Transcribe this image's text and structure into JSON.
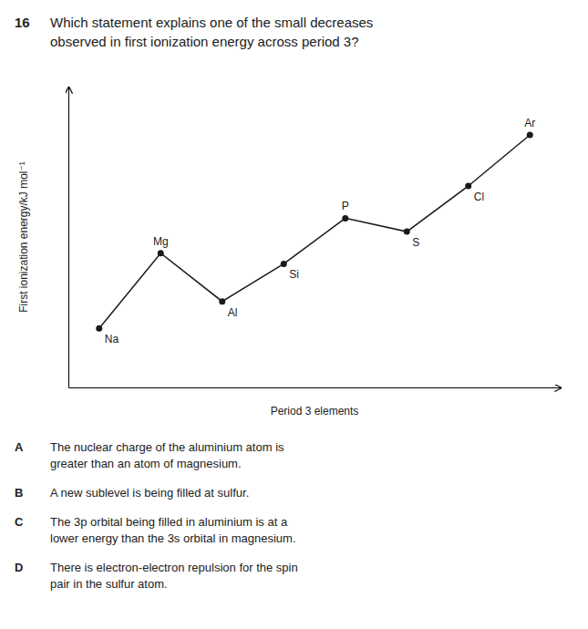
{
  "chart_data": {
    "type": "line",
    "title": "Which statement explains one of the small decreases\nobserved in first ionization energy across period 3?",
    "annotations": [
      "16",
      "A",
      "The nuclear charge of the aluminium atom is\ngreater than an atom of magnesium.",
      "B",
      "A new sublevel is being filled at sulfur.",
      "C",
      "The 3p orbital being filled in aluminium is at a\nlower energy than the 3s orbital in magnesium.",
      "D",
      "There is electron-electron repulsion for the spin\npair in the sulfur atom."
    ],
    "x_label": "Period 3 elements",
    "y_label": "First ionization energy/kJ mol⁻¹",
    "categories": [
      "Na",
      "Mg",
      "Al",
      "Si",
      "P",
      "S",
      "Cl",
      "Ar"
    ],
    "values": [
      0.22,
      0.5,
      0.32,
      0.46,
      0.63,
      0.58,
      0.75,
      0.94
    ],
    "color": "#1a1a1a",
    "marker": "circle",
    "ylim": [
      0,
      1.12
    ],
    "yticks": [],
    "grid": false,
    "tick_labels": false
  }
}
